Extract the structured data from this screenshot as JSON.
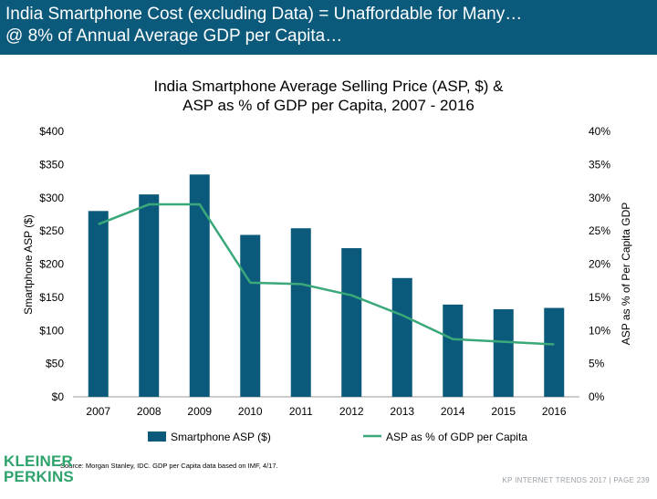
{
  "header": {
    "line1": "India Smartphone Cost (excluding Data) = Unaffordable for Many…",
    "line2": "@ 8% of Annual Average GDP per Capita…"
  },
  "chart_data": {
    "type": "bar",
    "title_line1": "India Smartphone Average Selling Price (ASP, $) &",
    "title_line2": "ASP as % of GDP per Capita, 2007 - 2016",
    "categories": [
      "2007",
      "2008",
      "2009",
      "2010",
      "2011",
      "2012",
      "2013",
      "2014",
      "2015",
      "2016"
    ],
    "series": [
      {
        "name": "Smartphone ASP ($)",
        "type": "bar",
        "axis": "left",
        "color": "#0b5a7c",
        "values": [
          280,
          305,
          335,
          244,
          254,
          224,
          179,
          139,
          132,
          134
        ]
      },
      {
        "name": "ASP as % of GDP per Capita",
        "type": "line",
        "axis": "right",
        "color": "#3aa878",
        "values": [
          26,
          29,
          29,
          17.2,
          17,
          15.3,
          12.3,
          8.7,
          8.3,
          7.9
        ]
      }
    ],
    "ylabel": "Smartphone ASP ($)",
    "y2label": "ASP as % of Per Capita GDP",
    "ylim": [
      0,
      400
    ],
    "y2lim": [
      0,
      40
    ],
    "yticks": [
      "$0",
      "$50",
      "$100",
      "$150",
      "$200",
      "$250",
      "$300",
      "$350",
      "$400"
    ],
    "y2ticks": [
      "0%",
      "5%",
      "10%",
      "15%",
      "20%",
      "25%",
      "30%",
      "35%",
      "40%"
    ],
    "grid": false,
    "legend": "bottom"
  },
  "source": "Source: Morgan Stanley, IDC. GDP per Capita data based on IMF, 4/17.",
  "logo": {
    "line1": "KLEINER",
    "line2": "PERKINS"
  },
  "footer": "KP INTERNET TRENDS 2017   |   PAGE 239"
}
